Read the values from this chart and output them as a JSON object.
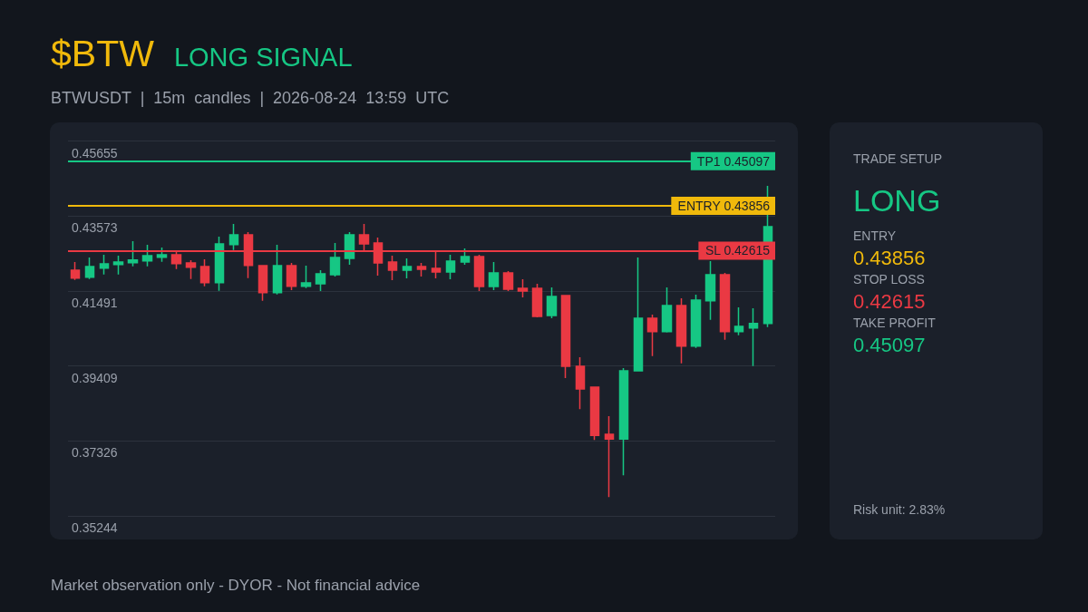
{
  "chart_data": [
    {
      "type": "candlestick",
      "title": "$BTW",
      "subtitle": "BTWUSDT | 15m candles | 2026-08-24 13:59 UTC",
      "annotations": [
        "LONG SIGNAL",
        "Market observation only - DYOR - Not financial advice"
      ],
      "categories": [
        null,
        null,
        null,
        null,
        null,
        null,
        null,
        null,
        null,
        null,
        null,
        null,
        null,
        null,
        null,
        null,
        null,
        null,
        null,
        null,
        null,
        null,
        null,
        null,
        null,
        null,
        null,
        null,
        null,
        null,
        null,
        null,
        null,
        null,
        null,
        null,
        null,
        null,
        null,
        null,
        null,
        null,
        null,
        null,
        null,
        null,
        null,
        null,
        null
      ],
      "ohlc": [
        [
          0.4207,
          0.42297,
          0.41801,
          0.41851
        ],
        [
          0.41876,
          0.42423,
          0.41826,
          0.42171
        ],
        [
          0.42128,
          0.42499,
          0.41952,
          0.42247
        ],
        [
          0.42229,
          0.42474,
          0.41952,
          0.42297
        ],
        [
          0.4228,
          0.42877,
          0.42178,
          0.42355
        ],
        [
          0.4233,
          0.42776,
          0.42178,
          0.42474
        ],
        [
          0.42431,
          0.427,
          0.42305,
          0.42499
        ],
        [
          0.42499,
          0.426,
          0.42103,
          0.42254
        ],
        [
          0.42272,
          0.42348,
          0.41826,
          0.42153
        ],
        [
          0.42171,
          0.42373,
          0.41624,
          0.41725
        ],
        [
          0.41725,
          0.43003,
          0.41498,
          0.42801
        ],
        [
          0.42784,
          0.43356,
          0.42632,
          0.43053
        ],
        [
          0.43053,
          0.43129,
          0.41851,
          0.42204
        ],
        [
          0.42196,
          0.42196,
          0.41221,
          0.41448
        ],
        [
          0.41448,
          0.42776,
          0.41398,
          0.42196
        ],
        [
          0.42196,
          0.42272,
          0.41516,
          0.41624
        ],
        [
          0.41624,
          0.42196,
          0.41574,
          0.41718
        ],
        [
          0.41692,
          0.4207,
          0.41491,
          0.4197
        ],
        [
          0.41944,
          0.42826,
          0.41894,
          0.42423
        ],
        [
          0.42398,
          0.43129,
          0.42222,
          0.43053
        ],
        [
          0.43053,
          0.43356,
          0.426,
          0.42801
        ],
        [
          0.42826,
          0.42978,
          0.41919,
          0.42272
        ],
        [
          0.42297,
          0.42474,
          0.41793,
          0.4207
        ],
        [
          0.4207,
          0.42398,
          0.41844,
          0.42171
        ],
        [
          0.42171,
          0.42272,
          0.41894,
          0.42096
        ],
        [
          0.42121,
          0.426,
          0.41844,
          0.4202
        ],
        [
          0.4202,
          0.42499,
          0.41818,
          0.42322
        ],
        [
          0.42297,
          0.42675,
          0.42222,
          0.42448
        ],
        [
          0.42448,
          0.42499,
          0.41491,
          0.41617
        ],
        [
          0.41617,
          0.42297,
          0.41516,
          0.41995
        ],
        [
          0.41995,
          0.42045,
          0.41491,
          0.41541
        ],
        [
          0.41566,
          0.41818,
          0.41314,
          0.41491
        ],
        [
          0.41566,
          0.41692,
          0.40759,
          0.40784
        ],
        [
          0.4081,
          0.41592,
          0.40734,
          0.4134
        ],
        [
          0.41365,
          0.41365,
          0.3907,
          0.39398
        ],
        [
          0.39398,
          0.3965,
          0.38213,
          0.38768
        ],
        [
          0.38818,
          0.38818,
          0.37356,
          0.37482
        ],
        [
          0.37508,
          0.38012,
          0.35768,
          0.37381
        ],
        [
          0.37381,
          0.39348,
          0.36373,
          0.39272
        ],
        [
          0.39272,
          0.42423,
          0.39272,
          0.40734
        ],
        [
          0.40734,
          0.40835,
          0.39683,
          0.40364
        ],
        [
          0.40364,
          0.41592,
          0.40338,
          0.41087
        ],
        [
          0.41087,
          0.41289,
          0.39481,
          0.39961
        ],
        [
          0.39961,
          0.4139,
          0.3991,
          0.41239
        ],
        [
          0.41221,
          0.42322,
          0.40692,
          0.41944
        ],
        [
          0.41944,
          0.41995,
          0.40137,
          0.40364
        ],
        [
          0.40364,
          0.41037,
          0.40263,
          0.40508
        ],
        [
          0.40465,
          0.41012,
          0.39406,
          0.40591
        ],
        [
          0.40591,
          0.44414,
          0.4049,
          0.4328
        ]
      ],
      "colors": [
        "#ea3943",
        "#16c784",
        "#16c784",
        "#16c784",
        "#16c784",
        "#16c784",
        "#16c784",
        "#ea3943",
        "#ea3943",
        "#ea3943",
        "#16c784",
        "#16c784",
        "#ea3943",
        "#ea3943",
        "#16c784",
        "#ea3943",
        "#16c784",
        "#16c784",
        "#16c784",
        "#16c784",
        "#ea3943",
        "#ea3943",
        "#ea3943",
        "#16c784",
        "#ea3943",
        "#ea3943",
        "#16c784",
        "#16c784",
        "#ea3943",
        "#16c784",
        "#ea3943",
        "#ea3943",
        "#ea3943",
        "#16c784",
        "#ea3943",
        "#ea3943",
        "#ea3943",
        "#ea3943",
        "#16c784",
        "#16c784",
        "#ea3943",
        "#16c784",
        "#ea3943",
        "#16c784",
        "#16c784",
        "#ea3943",
        "#16c784",
        "#16c784",
        "#16c784"
      ],
      "ylim": [
        0.35244,
        0.45655
      ],
      "yticks": [
        0.35244,
        0.37326,
        0.39409,
        0.41491,
        0.43573,
        0.45655
      ],
      "grid": "y",
      "tick_labels": "y",
      "ref_lines": [
        {
          "axis": "y",
          "value": 0.45097,
          "label": "TP1 0.45097",
          "color": "#16c784"
        },
        {
          "axis": "y",
          "value": 0.43856,
          "label": "ENTRY 0.43856",
          "color": "#f0b90b"
        },
        {
          "axis": "y",
          "value": 0.42615,
          "label": "SL 0.42615",
          "color": "#ea3943"
        }
      ]
    },
    {
      "type": "other",
      "title": "TRADE SETUP",
      "annotations": [
        "LONG",
        "ENTRY",
        "0.43856",
        "STOP LOSS",
        "0.42615",
        "TAKE PROFIT",
        "0.45097",
        "Risk unit: 2.83%"
      ]
    }
  ]
}
